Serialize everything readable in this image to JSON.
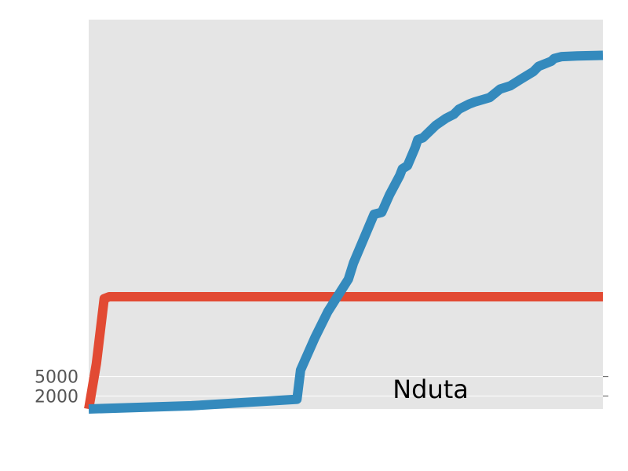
{
  "chart_data": {
    "type": "line",
    "title": "",
    "xlabel": "",
    "ylabel": "",
    "grid": true,
    "legend": "none",
    "background": "#e5e5e5",
    "xlim": [
      0,
      100
    ],
    "ylim": [
      0,
      60000
    ],
    "yticks": [
      2000,
      5000
    ],
    "ytick_labels": [
      "2000",
      "5000"
    ],
    "xticks": [],
    "annotation": {
      "text": "Nduta",
      "x": 66.5,
      "y": 2200
    },
    "series": [
      {
        "color": "#e24a33",
        "x": [
          0,
          1.5,
          3,
          4,
          100
        ],
        "y": [
          0,
          7000,
          17000,
          17300,
          17300
        ]
      },
      {
        "color": "#348abd",
        "x": [
          0,
          20,
          40.5,
          41.2,
          44,
          46.5,
          48.5,
          50.5,
          51.5,
          55.5,
          57,
          58.5,
          60.5,
          61,
          62,
          63.5,
          64,
          65,
          67.5,
          69.5,
          71,
          72,
          74,
          75,
          78,
          80,
          82,
          84,
          86.5,
          87.5,
          90,
          90.5,
          92,
          95,
          100
        ],
        "y": [
          0,
          500,
          1500,
          6000,
          11000,
          15000,
          17500,
          20000,
          22500,
          30000,
          30300,
          33000,
          36000,
          37000,
          37500,
          40300,
          41500,
          41800,
          43700,
          44800,
          45400,
          46200,
          47000,
          47300,
          48000,
          49300,
          49800,
          50800,
          52000,
          52800,
          53600,
          54000,
          54300,
          54400,
          54500
        ]
      }
    ]
  }
}
